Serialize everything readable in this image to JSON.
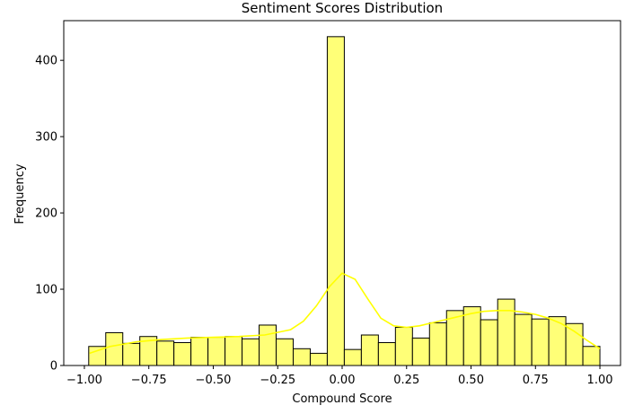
{
  "chart_data": {
    "type": "histogram",
    "title": "Sentiment Scores Distribution",
    "xlabel": "Compound Score",
    "ylabel": "Frequency",
    "xlim": [
      -1.08,
      1.08
    ],
    "ylim": [
      0,
      452
    ],
    "x_ticks": [
      -1.0,
      -0.75,
      -0.5,
      -0.25,
      0.0,
      0.25,
      0.5,
      0.75,
      1.0
    ],
    "x_tick_labels": [
      "−1.00",
      "−0.75",
      "−0.50",
      "−0.25",
      "0.00",
      "0.25",
      "0.50",
      "0.75",
      "1.00"
    ],
    "y_ticks": [
      0,
      100,
      200,
      300,
      400
    ],
    "y_tick_labels": [
      "0",
      "100",
      "200",
      "300",
      "400"
    ],
    "bin_range": [
      -0.9832,
      1.0
    ],
    "bin_counts": [
      25,
      43,
      29,
      38,
      32,
      30,
      37,
      37,
      38,
      35,
      53,
      35,
      22,
      16,
      431,
      21,
      40,
      30,
      50,
      36,
      56,
      72,
      77,
      60,
      87,
      67,
      61,
      64,
      55,
      25
    ],
    "bar_fill": "#ffff77",
    "bar_edge": "#000000",
    "kde": {
      "color": "#ffff00",
      "x": [
        -0.98,
        -0.9,
        -0.8,
        -0.7,
        -0.6,
        -0.5,
        -0.4,
        -0.3,
        -0.2,
        -0.15,
        -0.1,
        -0.05,
        0.0,
        0.05,
        0.1,
        0.15,
        0.2,
        0.25,
        0.3,
        0.35,
        0.4,
        0.45,
        0.5,
        0.55,
        0.6,
        0.65,
        0.7,
        0.75,
        0.8,
        0.85,
        0.9,
        0.95,
        1.0
      ],
      "y": [
        16,
        25,
        31,
        34,
        36,
        37,
        38,
        40,
        47,
        58,
        78,
        103,
        121,
        113,
        87,
        62,
        52,
        50,
        52,
        56,
        60,
        64,
        68,
        71,
        72,
        72,
        70,
        67,
        62,
        55,
        45,
        33,
        22
      ]
    },
    "grid": false,
    "legend": "none"
  }
}
